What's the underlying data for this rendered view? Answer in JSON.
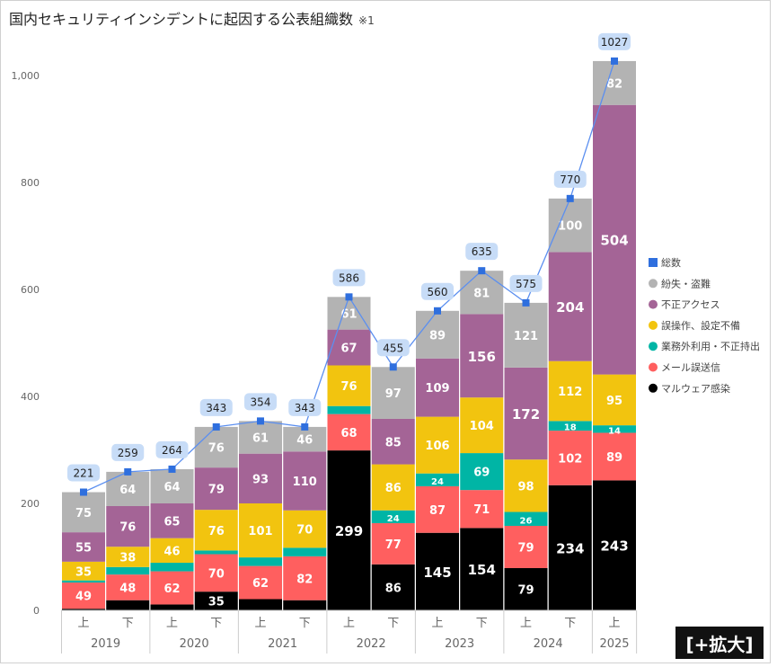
{
  "title": "国内セキュリティインシデントに起因する公表組織数",
  "title_note": "※1",
  "zoom_button": "[+拡大]",
  "chart_data": {
    "type": "bar",
    "stacked": true,
    "categories": [
      "上",
      "下",
      "上",
      "下",
      "上",
      "下",
      "上",
      "下",
      "上",
      "下",
      "上",
      "下",
      "上"
    ],
    "groups": [
      {
        "label": "2019",
        "count": 2
      },
      {
        "label": "2020",
        "count": 2
      },
      {
        "label": "2021",
        "count": 2
      },
      {
        "label": "2022",
        "count": 2
      },
      {
        "label": "2023",
        "count": 2
      },
      {
        "label": "2024",
        "count": 2
      },
      {
        "label": "2025",
        "count": 1
      }
    ],
    "ylim": [
      0,
      1050
    ],
    "yticks": [
      0,
      200,
      400,
      600,
      800,
      1000
    ],
    "ytick_labels": [
      "0",
      "200",
      "400",
      "600",
      "800",
      "1,000"
    ],
    "grid": false,
    "legend_position": "right",
    "series": [
      {
        "name": "マルウェア感染",
        "color": "#000000",
        "values": [
          3,
          19,
          11,
          35,
          21,
          19,
          299,
          86,
          145,
          154,
          79,
          234,
          243
        ],
        "labeled": [
          false,
          false,
          false,
          true,
          false,
          false,
          true,
          true,
          true,
          true,
          true,
          true,
          true
        ]
      },
      {
        "name": "メール誤送信",
        "color": "#ff5f5f",
        "values": [
          49,
          48,
          62,
          70,
          62,
          82,
          68,
          77,
          87,
          71,
          79,
          102,
          89
        ],
        "labeled": [
          true,
          true,
          true,
          true,
          true,
          true,
          true,
          true,
          true,
          true,
          true,
          true,
          true
        ]
      },
      {
        "name": "業務外利用・不正持出",
        "color": "#00b5a5",
        "values": [
          4,
          14,
          16,
          7,
          16,
          16,
          15,
          24,
          24,
          69,
          26,
          18,
          14
        ],
        "labeled": [
          false,
          false,
          false,
          false,
          false,
          false,
          false,
          true,
          true,
          true,
          true,
          true,
          true
        ]
      },
      {
        "name": "誤操作、設定不備",
        "color": "#f2c40f",
        "values": [
          35,
          38,
          46,
          76,
          101,
          70,
          76,
          86,
          106,
          104,
          98,
          112,
          95
        ],
        "labeled": [
          true,
          true,
          true,
          true,
          true,
          true,
          true,
          true,
          true,
          true,
          true,
          true,
          true
        ]
      },
      {
        "name": "不正アクセス",
        "color": "#a46496",
        "values": [
          55,
          76,
          65,
          79,
          93,
          110,
          67,
          85,
          109,
          156,
          172,
          204,
          504
        ],
        "labeled": [
          true,
          true,
          true,
          true,
          true,
          true,
          true,
          true,
          true,
          true,
          true,
          true,
          true
        ]
      },
      {
        "name": "紛失・盗難",
        "color": "#b3b3b3",
        "values": [
          75,
          64,
          64,
          76,
          61,
          46,
          61,
          97,
          89,
          81,
          121,
          100,
          82
        ],
        "labeled": [
          true,
          true,
          true,
          true,
          true,
          true,
          true,
          true,
          true,
          true,
          true,
          true,
          true
        ]
      }
    ],
    "line": {
      "name": "総数",
      "color": "#2f6fde",
      "values": [
        221,
        259,
        264,
        343,
        354,
        343,
        586,
        455,
        560,
        635,
        575,
        770,
        1027
      ]
    },
    "legend_order": [
      "総数",
      "紛失・盗難",
      "不正アクセス",
      "誤操作、設定不備",
      "業務外利用・不正持出",
      "メール誤送信",
      "マルウェア感染"
    ]
  }
}
